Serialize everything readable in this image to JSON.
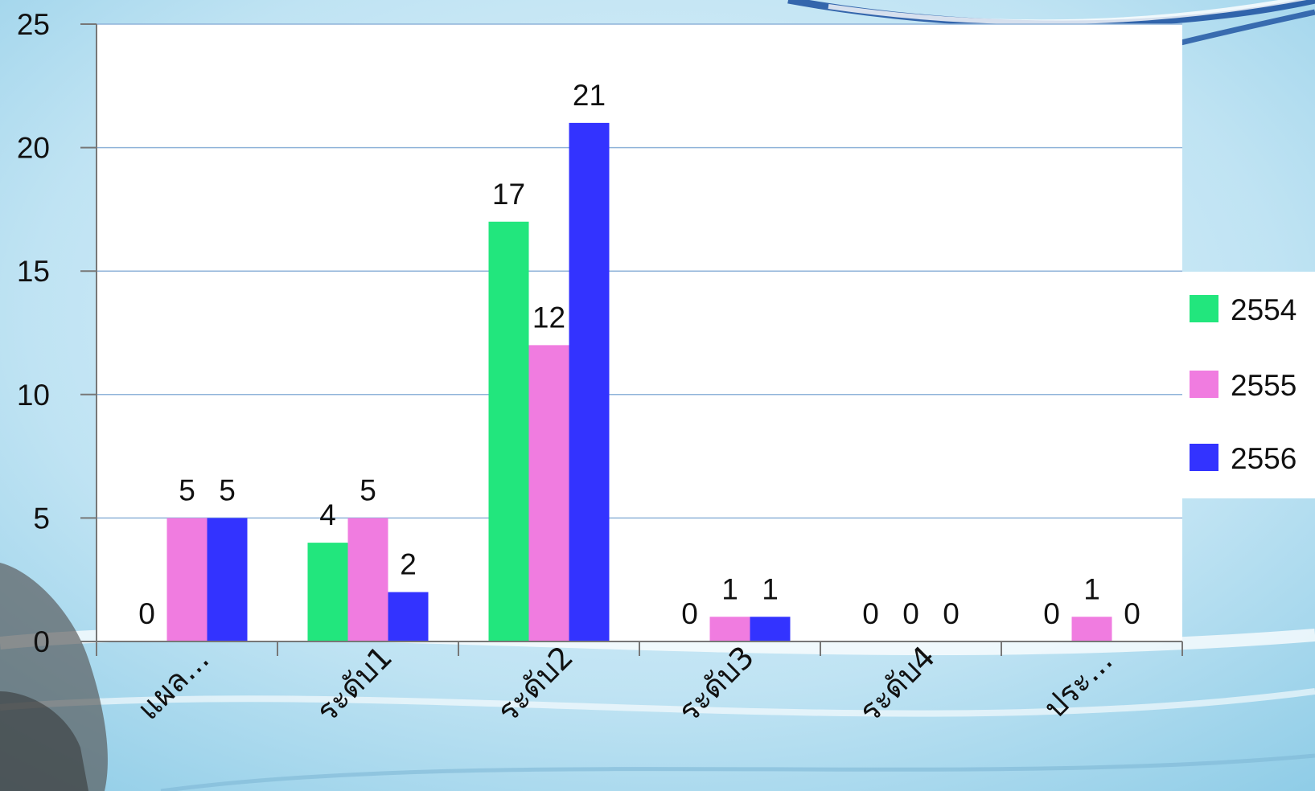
{
  "chart_data": {
    "type": "bar",
    "categories": [
      "แผล...",
      "ระดับ1",
      "ระดับ2",
      "ระดับ3",
      "ระดับ4",
      "ประ..."
    ],
    "series": [
      {
        "name": "2554",
        "values": [
          0,
          4,
          17,
          0,
          0,
          0
        ],
        "color": "#22e67d"
      },
      {
        "name": "2555",
        "values": [
          5,
          5,
          12,
          1,
          0,
          1
        ],
        "color": "#f07ce0"
      },
      {
        "name": "2556",
        "values": [
          5,
          2,
          21,
          1,
          0,
          0
        ],
        "color": "#3333ff"
      }
    ],
    "yticks": [
      "0",
      "5",
      "10",
      "15",
      "20",
      "25"
    ],
    "ylim": [
      0,
      25
    ],
    "grid": true,
    "legend_position": "right",
    "title": "",
    "xlabel": "",
    "ylabel": ""
  }
}
